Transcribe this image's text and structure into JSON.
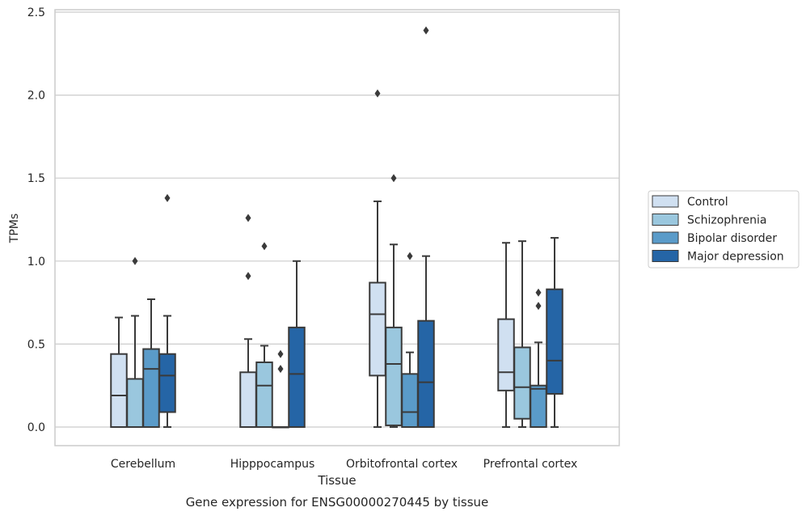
{
  "chart_data": {
    "type": "boxplot",
    "xlabel": "Tissue",
    "ylabel": "TPMs",
    "caption": "Gene expression for ENSG00000270445 by tissue",
    "ylim": [
      -0.12,
      2.52
    ],
    "yticks": [
      0.0,
      0.5,
      1.0,
      1.5,
      2.0,
      2.5
    ],
    "ytick_labels": [
      "0.0",
      "0.5",
      "1.0",
      "1.5",
      "2.0",
      "2.5"
    ],
    "grid": "horizontal",
    "legend_position": "right",
    "categories": [
      "Cerebellum",
      "Hipppocampus",
      "Orbitofrontal cortex",
      "Prefrontal cortex"
    ],
    "series": [
      {
        "name": "Control",
        "color": "#d0e0f1",
        "boxes": [
          {
            "whisker_low": 0.0,
            "q1": 0.0,
            "median": 0.19,
            "q3": 0.44,
            "whisker_high": 0.66,
            "outliers": []
          },
          {
            "whisker_low": 0.0,
            "q1": 0.0,
            "median": 0.0,
            "q3": 0.33,
            "whisker_high": 0.53,
            "outliers": [
              0.91,
              1.26
            ]
          },
          {
            "whisker_low": 0.0,
            "q1": 0.31,
            "median": 0.68,
            "q3": 0.87,
            "whisker_high": 1.36,
            "outliers": [
              2.01
            ]
          },
          {
            "whisker_low": 0.0,
            "q1": 0.22,
            "median": 0.33,
            "q3": 0.65,
            "whisker_high": 1.11,
            "outliers": []
          }
        ]
      },
      {
        "name": "Schizophrenia",
        "color": "#9ac7de",
        "boxes": [
          {
            "whisker_low": 0.0,
            "q1": 0.0,
            "median": 0.0,
            "q3": 0.29,
            "whisker_high": 0.67,
            "outliers": [
              1.0
            ]
          },
          {
            "whisker_low": 0.0,
            "q1": 0.0,
            "median": 0.25,
            "q3": 0.39,
            "whisker_high": 0.49,
            "outliers": [
              1.09
            ]
          },
          {
            "whisker_low": 0.0,
            "q1": 0.01,
            "median": 0.38,
            "q3": 0.6,
            "whisker_high": 1.1,
            "outliers": [
              1.5
            ]
          },
          {
            "whisker_low": 0.0,
            "q1": 0.05,
            "median": 0.24,
            "q3": 0.48,
            "whisker_high": 1.12,
            "outliers": []
          }
        ]
      },
      {
        "name": "Bipolar disorder",
        "color": "#5a9bc9",
        "boxes": [
          {
            "whisker_low": 0.0,
            "q1": 0.0,
            "median": 0.35,
            "q3": 0.47,
            "whisker_high": 0.77,
            "outliers": []
          },
          {
            "whisker_low": 0.0,
            "q1": 0.0,
            "median": 0.0,
            "q3": 0.0,
            "whisker_high": 0.0,
            "outliers": [
              0.35,
              0.44
            ]
          },
          {
            "whisker_low": 0.0,
            "q1": 0.0,
            "median": 0.09,
            "q3": 0.32,
            "whisker_high": 0.45,
            "outliers": [
              1.03
            ]
          },
          {
            "whisker_low": 0.0,
            "q1": 0.0,
            "median": 0.23,
            "q3": 0.25,
            "whisker_high": 0.51,
            "outliers": [
              0.73,
              0.81
            ]
          }
        ]
      },
      {
        "name": "Major depression",
        "color": "#2565a6",
        "boxes": [
          {
            "whisker_low": 0.0,
            "q1": 0.09,
            "median": 0.31,
            "q3": 0.44,
            "whisker_high": 0.67,
            "outliers": [
              1.38
            ]
          },
          {
            "whisker_low": 0.0,
            "q1": 0.0,
            "median": 0.32,
            "q3": 0.6,
            "whisker_high": 1.0,
            "outliers": []
          },
          {
            "whisker_low": 0.0,
            "q1": 0.0,
            "median": 0.27,
            "q3": 0.64,
            "whisker_high": 1.03,
            "outliers": [
              2.39
            ]
          },
          {
            "whisker_low": 0.0,
            "q1": 0.2,
            "median": 0.4,
            "q3": 0.83,
            "whisker_high": 1.14,
            "outliers": []
          }
        ]
      }
    ],
    "colors": {
      "frame": "#cccccc",
      "grid": "#cccccc",
      "box_edge": "#3a3a3a",
      "text": "#262626"
    }
  }
}
